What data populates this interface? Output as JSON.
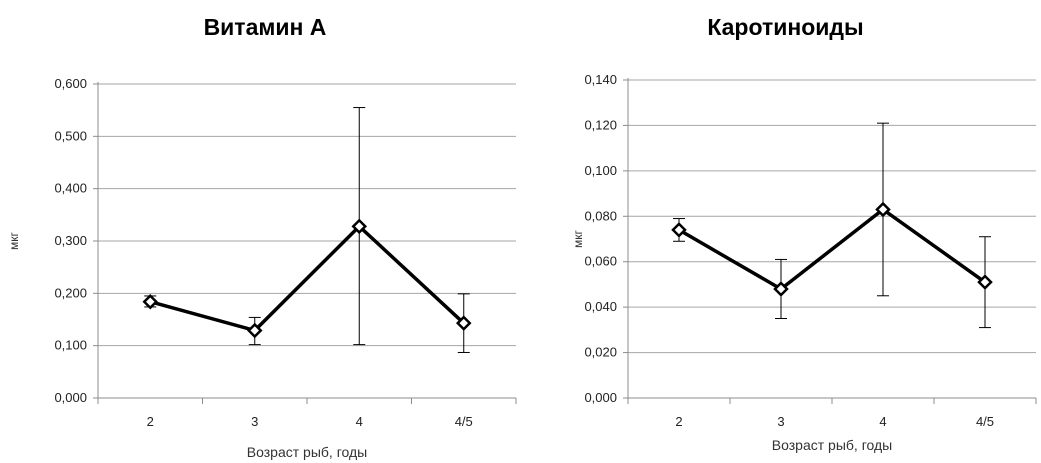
{
  "chart_data": [
    {
      "type": "line",
      "title": "Витамин А",
      "xlabel": "Возраст рыб, годы",
      "ylabel": "мкг",
      "categories": [
        "2",
        "3",
        "4",
        "4/5"
      ],
      "yticks": [
        "0,000",
        "0,100",
        "0,200",
        "0,300",
        "0,400",
        "0,500",
        "0,600"
      ],
      "ylim": [
        0,
        0.6
      ],
      "grid": true,
      "series": [
        {
          "values": [
            0.184,
            0.129,
            0.328,
            0.143
          ],
          "err_low": [
            0.174,
            0.102,
            0.102,
            0.087
          ],
          "err_high": [
            0.195,
            0.154,
            0.555,
            0.199
          ]
        }
      ],
      "colors": {
        "line": "#000000",
        "grid": "#a6a6a6",
        "axis": "#8c8c8c"
      }
    },
    {
      "type": "line",
      "title": "Каротиноиды",
      "xlabel": "Возраст рыб, годы",
      "ylabel": "мкг",
      "categories": [
        "2",
        "3",
        "4",
        "4/5"
      ],
      "yticks": [
        "0,000",
        "0,020",
        "0,040",
        "0,060",
        "0,080",
        "0,100",
        "0,120",
        "0,140"
      ],
      "ylim": [
        0,
        0.14
      ],
      "grid": true,
      "series": [
        {
          "values": [
            0.074,
            0.048,
            0.083,
            0.051
          ],
          "err_low": [
            0.069,
            0.035,
            0.045,
            0.031
          ],
          "err_high": [
            0.079,
            0.061,
            0.121,
            0.071
          ]
        }
      ],
      "colors": {
        "line": "#000000",
        "grid": "#a6a6a6",
        "axis": "#8c8c8c"
      }
    }
  ]
}
